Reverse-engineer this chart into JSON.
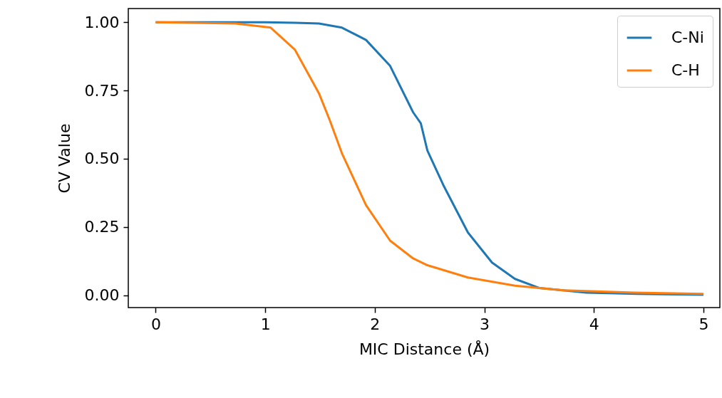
{
  "chart_data": {
    "type": "line",
    "xlabel": "MIC Distance (Å)",
    "ylabel": "CV Value",
    "xlim": [
      -0.25,
      5.15
    ],
    "ylim": [
      -0.045,
      1.05
    ],
    "xticks": [
      0,
      1,
      2,
      3,
      4,
      5
    ],
    "yticks": [
      {
        "value": 0,
        "label": "0.00"
      },
      {
        "value": 0.25,
        "label": "0.25"
      },
      {
        "value": 0.5,
        "label": "0.50"
      },
      {
        "value": 0.75,
        "label": "0.75"
      },
      {
        "value": 1,
        "label": "1.00"
      }
    ],
    "grid": false,
    "legend": "top right",
    "line_style": "solid",
    "marker": "none",
    "series": [
      {
        "name": "C-Ni",
        "color": "#1f77b4",
        "x": [
          0,
          1.0,
          1.27,
          1.49,
          1.7,
          1.92,
          2.14,
          2.35,
          2.42,
          2.48,
          2.63,
          2.85,
          3.07,
          3.28,
          3.5,
          3.93,
          4.4,
          5.0
        ],
        "values": [
          1.0,
          1.0,
          0.998,
          0.995,
          0.98,
          0.935,
          0.84,
          0.67,
          0.63,
          0.53,
          0.4,
          0.23,
          0.12,
          0.06,
          0.027,
          0.01,
          0.005,
          0.002
        ]
      },
      {
        "name": "C-H",
        "color": "#ff7f0e",
        "x": [
          0,
          0.73,
          1.05,
          1.27,
          1.49,
          1.59,
          1.7,
          1.92,
          2.14,
          2.35,
          2.48,
          2.85,
          3.28,
          3.72,
          4.37,
          5.0
        ],
        "values": [
          1.0,
          0.995,
          0.98,
          0.9,
          0.74,
          0.64,
          0.52,
          0.33,
          0.2,
          0.135,
          0.11,
          0.065,
          0.035,
          0.018,
          0.01,
          0.005
        ]
      }
    ]
  }
}
